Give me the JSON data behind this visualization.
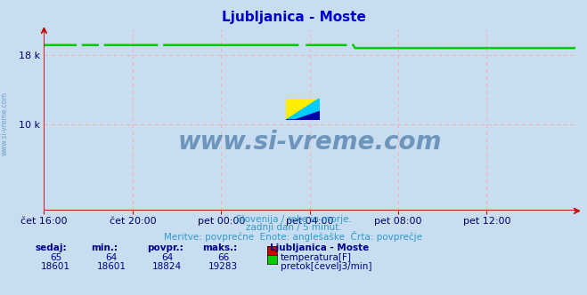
{
  "title": "Ljubljanica - Moste",
  "title_color": "#0000cc",
  "bg_color": "#c8ddf0",
  "plot_bg_color": "#c8ddf0",
  "grid_color": "#ffaaaa",
  "x_labels": [
    "čet 16:00",
    "čet 20:00",
    "pet 00:00",
    "pet 04:00",
    "pet 08:00",
    "pet 12:00"
  ],
  "x_ticks_norm": [
    0.0,
    0.1667,
    0.3333,
    0.5,
    0.6667,
    0.8333
  ],
  "ylim": [
    0,
    21000
  ],
  "yticks": [
    10000,
    18000
  ],
  "yticklabels": [
    "10 k",
    "18 k"
  ],
  "temp_color": "#cc0000",
  "flow_color": "#00cc00",
  "axis_color": "#cc0000",
  "watermark": "www.si-vreme.com",
  "watermark_color": "#336699",
  "subtitle1": "Slovenija / reke in morje.",
  "subtitle2": "zadnji dan / 5 minut.",
  "subtitle3": "Meritve: povprečne  Enote: anglešaške  Črta: povprečje",
  "subtitle_color": "#3399cc",
  "legend_title": "Ljubljanica - Moste",
  "legend_color": "#000088",
  "label_temp": "temperatura[F]",
  "label_flow": "pretok[čevelj3/min]",
  "label_color": "#000088",
  "sidebar_text": "www.si-vreme.com",
  "sidebar_color": "#4488bb",
  "temp_value": 65,
  "temp_min": 64,
  "temp_avg": 64,
  "temp_max": 66,
  "flow_value": 18601,
  "flow_min": 18601,
  "flow_avg": 18824,
  "flow_max": 19283,
  "n_points": 288,
  "flow_step_index": 168,
  "flow_before_step": 19200,
  "flow_after_step": 18850,
  "flow_avg_value": 18824
}
